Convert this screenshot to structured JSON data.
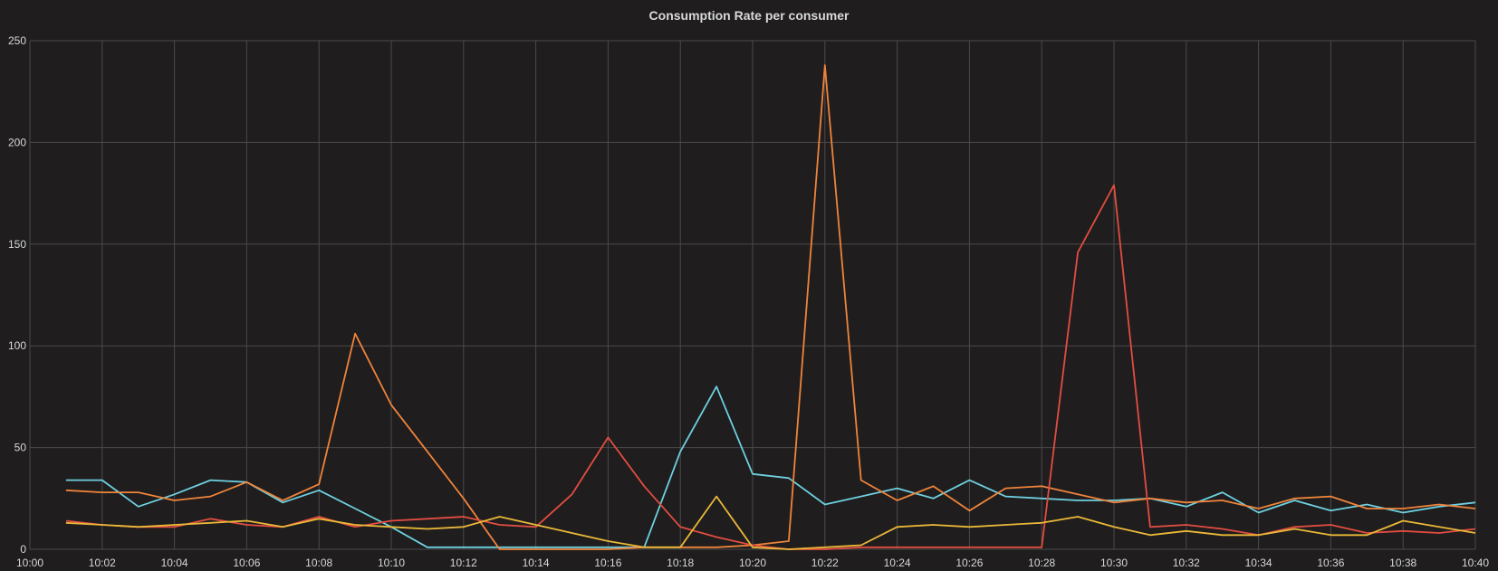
{
  "panel": {
    "title": "Consumption Rate per consumer"
  },
  "chart_data": {
    "type": "line",
    "title": "Consumption Rate per consumer",
    "xlabel": "",
    "ylabel": "",
    "x": [
      "10:01",
      "10:02",
      "10:03",
      "10:04",
      "10:05",
      "10:06",
      "10:07",
      "10:08",
      "10:09",
      "10:10",
      "10:11",
      "10:12",
      "10:13",
      "10:14",
      "10:15",
      "10:16",
      "10:17",
      "10:18",
      "10:19",
      "10:20",
      "10:21",
      "10:22",
      "10:23",
      "10:24",
      "10:25",
      "10:26",
      "10:27",
      "10:28",
      "10:29",
      "10:30",
      "10:31",
      "10:32",
      "10:33",
      "10:34",
      "10:35",
      "10:36",
      "10:37",
      "10:38",
      "10:39",
      "10:40"
    ],
    "x_ticks": [
      "10:00",
      "10:02",
      "10:04",
      "10:06",
      "10:08",
      "10:10",
      "10:12",
      "10:14",
      "10:16",
      "10:18",
      "10:20",
      "10:22",
      "10:24",
      "10:26",
      "10:28",
      "10:30",
      "10:32",
      "10:34",
      "10:36",
      "10:38",
      "10:40"
    ],
    "x_range": [
      "10:00",
      "10:40"
    ],
    "y_ticks": [
      0,
      50,
      100,
      150,
      200,
      250
    ],
    "ylim": [
      0,
      250
    ],
    "grid": true,
    "legend": "none",
    "series": [
      {
        "color": "#6ed0e0",
        "values": [
          34,
          34,
          21,
          27,
          34,
          33,
          23,
          29,
          20,
          11,
          1,
          1,
          1,
          1,
          1,
          1,
          1,
          48,
          80,
          37,
          35,
          22,
          26,
          30,
          25,
          34,
          26,
          25,
          24,
          24,
          25,
          21,
          28,
          18,
          24,
          19,
          22,
          18,
          21,
          23
        ]
      },
      {
        "color": "#ef843c",
        "values": [
          29,
          28,
          28,
          24,
          26,
          33,
          24,
          32,
          106,
          71,
          48,
          25,
          0,
          0,
          0,
          0,
          1,
          1,
          1,
          2,
          4,
          238,
          34,
          24,
          31,
          19,
          30,
          31,
          27,
          23,
          25,
          23,
          24,
          20,
          25,
          26,
          20,
          20,
          22,
          20
        ]
      },
      {
        "color": "#e24d42",
        "values": [
          14,
          12,
          11,
          11,
          15,
          12,
          11,
          16,
          11,
          14,
          15,
          16,
          12,
          11,
          27,
          55,
          31,
          11,
          6,
          2,
          0,
          0,
          1,
          1,
          1,
          1,
          1,
          1,
          146,
          179,
          11,
          12,
          10,
          7,
          11,
          12,
          8,
          9,
          8,
          10
        ]
      },
      {
        "color": "#eab839",
        "values": [
          13,
          12,
          11,
          12,
          13,
          14,
          11,
          15,
          12,
          11,
          10,
          11,
          16,
          12,
          8,
          4,
          1,
          1,
          26,
          1,
          0,
          1,
          2,
          11,
          12,
          11,
          12,
          13,
          16,
          11,
          7,
          9,
          7,
          7,
          10,
          7,
          7,
          14,
          11,
          8
        ]
      }
    ]
  }
}
